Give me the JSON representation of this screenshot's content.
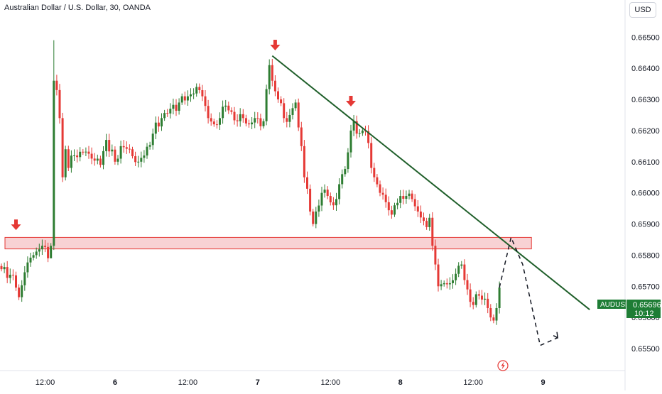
{
  "header": {
    "title": "Australian Dollar / U.S. Dollar, 30, OANDA",
    "currency": "USD"
  },
  "price_tag": {
    "symbol": "AUDUSD",
    "price": "0.65696",
    "countdown": "10:12",
    "color": "#1e7d35"
  },
  "colors": {
    "up": "#2e7d32",
    "down": "#e53935",
    "trendline": "#1f5f2a",
    "zone_fill": "#f6c3c6",
    "zone_border": "#e53935",
    "arrow": "#e53935",
    "grid": "#f0f3fa",
    "projection": "#131722"
  },
  "icons": [
    "lightning-icon",
    "down-arrow-marker"
  ],
  "chart_data": {
    "type": "candlestick",
    "title": "Australian Dollar / U.S. Dollar, 30, OANDA",
    "y_ticks": [
      "0.65500",
      "0.65600",
      "0.65700",
      "0.65800",
      "0.65900",
      "0.66000",
      "0.66100",
      "0.66200",
      "0.66300",
      "0.66400",
      "0.66500"
    ],
    "ylim": [
      0.65475,
      0.66528
    ],
    "x_ticks": [
      {
        "label": "12:00",
        "bold": false,
        "bar": 15
      },
      {
        "label": "6",
        "bold": true,
        "bar": 39
      },
      {
        "label": "12:00",
        "bold": false,
        "bar": 64
      },
      {
        "label": "7",
        "bold": true,
        "bar": 88
      },
      {
        "label": "12:00",
        "bold": false,
        "bar": 113
      },
      {
        "label": "8",
        "bold": true,
        "bar": 137
      },
      {
        "label": "12:00",
        "bold": false,
        "bar": 162
      },
      {
        "label": "9",
        "bold": true,
        "bar": 186
      }
    ],
    "grid": false,
    "waypoints": [
      [
        0,
        0.65755
      ],
      [
        4,
        0.65735
      ],
      [
        6,
        0.65665
      ],
      [
        8,
        0.65745
      ],
      [
        11,
        0.658
      ],
      [
        14,
        0.6583
      ],
      [
        16,
        0.6579
      ],
      [
        17,
        0.6583
      ],
      [
        18,
        0.6636
      ],
      [
        19,
        0.6633
      ],
      [
        20,
        0.6624
      ],
      [
        21,
        0.6605
      ],
      [
        22,
        0.6614
      ],
      [
        23,
        0.6608
      ],
      [
        25,
        0.6612
      ],
      [
        28,
        0.6613
      ],
      [
        31,
        0.6611
      ],
      [
        34,
        0.6609
      ],
      [
        36,
        0.6617
      ],
      [
        39,
        0.661
      ],
      [
        41,
        0.6615
      ],
      [
        44,
        0.6614
      ],
      [
        47,
        0.661
      ],
      [
        49,
        0.6612
      ],
      [
        52,
        0.6619
      ],
      [
        55,
        0.6624
      ],
      [
        58,
        0.6627
      ],
      [
        61,
        0.6629
      ],
      [
        64,
        0.6631
      ],
      [
        67,
        0.6634
      ],
      [
        69,
        0.6631
      ],
      [
        71,
        0.6624
      ],
      [
        73,
        0.6622
      ],
      [
        75,
        0.6624
      ],
      [
        77,
        0.6628
      ],
      [
        79,
        0.6626
      ],
      [
        81,
        0.6623
      ],
      [
        83,
        0.6624
      ],
      [
        85,
        0.6622
      ],
      [
        87,
        0.6624
      ],
      [
        90,
        0.6623
      ],
      [
        92,
        0.6641
      ],
      [
        93,
        0.6636
      ],
      [
        95,
        0.663
      ],
      [
        97,
        0.6624
      ],
      [
        99,
        0.6625
      ],
      [
        101,
        0.6629
      ],
      [
        102,
        0.6621
      ],
      [
        103,
        0.6615
      ],
      [
        104,
        0.6605
      ],
      [
        106,
        0.6594
      ],
      [
        107,
        0.659
      ],
      [
        108,
        0.6594
      ],
      [
        110,
        0.66
      ],
      [
        112,
        0.6599
      ],
      [
        114,
        0.6596
      ],
      [
        115,
        0.6598
      ],
      [
        117,
        0.6606
      ],
      [
        119,
        0.6613
      ],
      [
        120,
        0.662
      ],
      [
        121,
        0.6623
      ],
      [
        122,
        0.6619
      ],
      [
        124,
        0.662
      ],
      [
        126,
        0.6616
      ],
      [
        127,
        0.6608
      ],
      [
        128,
        0.6605
      ],
      [
        130,
        0.66
      ],
      [
        132,
        0.6597
      ],
      [
        134,
        0.6593
      ],
      [
        135,
        0.6596
      ],
      [
        137,
        0.6599
      ],
      [
        139,
        0.6599
      ],
      [
        141,
        0.6598
      ],
      [
        143,
        0.6594
      ],
      [
        145,
        0.6591
      ],
      [
        146,
        0.6589
      ],
      [
        147,
        0.6592
      ],
      [
        148,
        0.6583
      ],
      [
        149,
        0.6577
      ],
      [
        150,
        0.657
      ],
      [
        152,
        0.6571
      ],
      [
        154,
        0.6571
      ],
      [
        156,
        0.6574
      ],
      [
        158,
        0.6577
      ],
      [
        159,
        0.6572
      ],
      [
        160,
        0.6569
      ],
      [
        161,
        0.6565
      ],
      [
        162,
        0.6564
      ],
      [
        164,
        0.6567
      ],
      [
        166,
        0.6566
      ],
      [
        167,
        0.6563
      ],
      [
        168,
        0.656
      ],
      [
        169,
        0.6559
      ],
      [
        170,
        0.6563
      ],
      [
        171,
        0.65696
      ]
    ],
    "annotations": {
      "resistance_zone": [
        0.6582,
        0.65857
      ],
      "zone_start_bar": 0,
      "zone_end_bar": 182,
      "trendline": [
        [
          93,
          0.6644
        ],
        [
          202,
          0.65625
        ]
      ],
      "markers": [
        {
          "bar": 5,
          "price": 0.65878
        },
        {
          "bar": 94,
          "price": 0.66455
        },
        {
          "bar": 120,
          "price": 0.66275
        }
      ],
      "projection": [
        [
          171,
          0.65696
        ],
        [
          175,
          0.65857
        ],
        [
          179,
          0.6577
        ],
        [
          185,
          0.6551
        ],
        [
          191,
          0.65535
        ]
      ]
    }
  }
}
